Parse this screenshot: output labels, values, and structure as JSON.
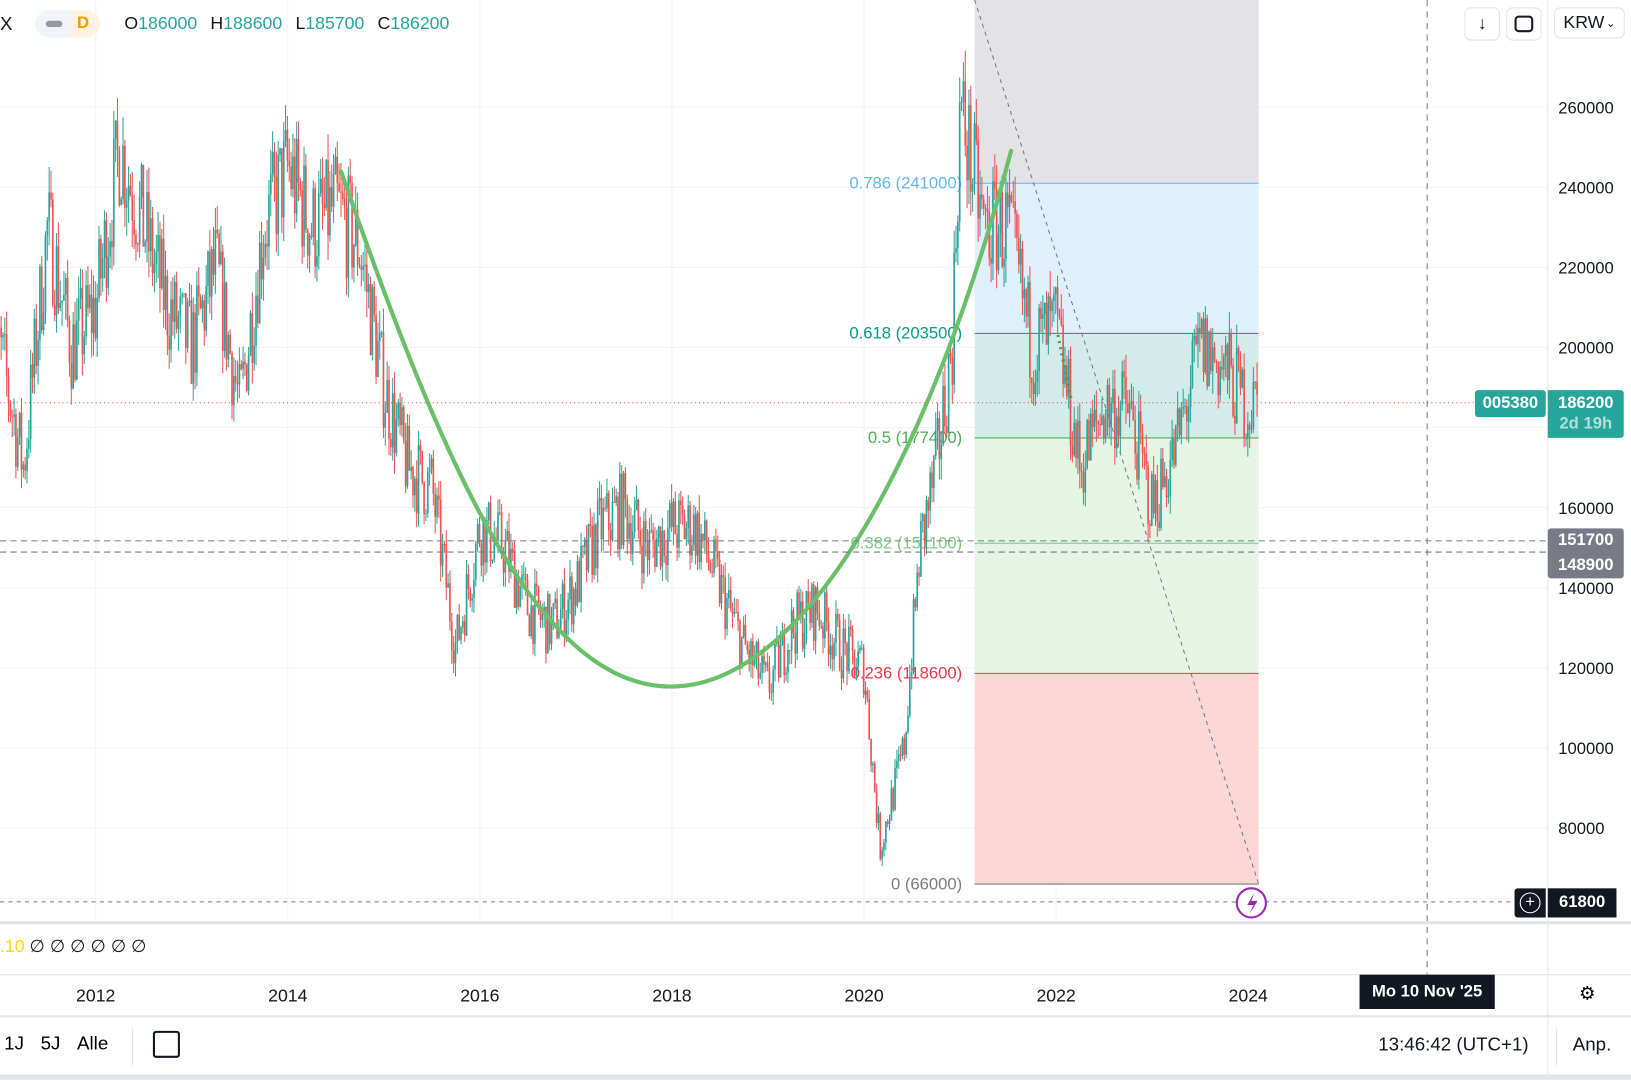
{
  "header": {
    "symbol_fragment": "X",
    "interval": "D",
    "ohlc": {
      "o_label": "O",
      "o": "186000",
      "h_label": "H",
      "h": "188600",
      "l_label": "L",
      "l": "185700",
      "c_label": "C",
      "c": "186200"
    }
  },
  "toolbar": {
    "currency": "KRW",
    "download_icon": "arrow-down-icon",
    "fullscreen_icon": "frame-icon"
  },
  "price_tags": {
    "symbol": "005380",
    "last": "186200",
    "countdown": "2d 19h",
    "line1": "151700",
    "line2": "148900",
    "line3": "61800"
  },
  "indicator": {
    "value": ".10",
    "placeholders": [
      "∅",
      "∅",
      "∅",
      "∅",
      "∅",
      "∅"
    ]
  },
  "crosshair_date": "Mo 10 Nov '25",
  "bottom": {
    "ranges": [
      "1J",
      "5J",
      "Alle"
    ],
    "clock": "13:46:42 (UTC+1)",
    "adjust": "Anp."
  },
  "colors": {
    "up": "#26a69a",
    "down": "#ef5350",
    "cup": "#6abf69"
  },
  "chart_data": {
    "type": "candlestick",
    "yticks": [
      "80000",
      "100000",
      "120000",
      "140000",
      "160000",
      "200000",
      "220000",
      "240000",
      "260000"
    ],
    "xticks": [
      "2012",
      "2014",
      "2016",
      "2018",
      "2020",
      "2022",
      "2024"
    ],
    "ylim": [
      60000,
      290000
    ],
    "xlim": [
      "2011",
      "2025-12"
    ],
    "approx_closes": [
      [
        "2011-01",
        200000
      ],
      [
        "2011-04",
        170000
      ],
      [
        "2011-07",
        230000
      ],
      [
        "2011-10",
        200000
      ],
      [
        "2012-01",
        210000
      ],
      [
        "2012-04",
        250000
      ],
      [
        "2012-07",
        230000
      ],
      [
        "2012-10",
        210000
      ],
      [
        "2013-01",
        200000
      ],
      [
        "2013-04",
        220000
      ],
      [
        "2013-07",
        185000
      ],
      [
        "2013-10",
        230000
      ],
      [
        "2014-01",
        245000
      ],
      [
        "2014-04",
        230000
      ],
      [
        "2014-07",
        235000
      ],
      [
        "2014-10",
        225000
      ],
      [
        "2015-01",
        190000
      ],
      [
        "2015-04",
        170000
      ],
      [
        "2015-07",
        165000
      ],
      [
        "2015-10",
        125000
      ],
      [
        "2016-01",
        155000
      ],
      [
        "2016-04",
        150000
      ],
      [
        "2016-07",
        135000
      ],
      [
        "2016-10",
        130000
      ],
      [
        "2017-01",
        140000
      ],
      [
        "2017-04",
        155000
      ],
      [
        "2017-07",
        160000
      ],
      [
        "2017-10",
        150000
      ],
      [
        "2018-01",
        155000
      ],
      [
        "2018-04",
        155000
      ],
      [
        "2018-07",
        140000
      ],
      [
        "2018-10",
        125000
      ],
      [
        "2019-01",
        115000
      ],
      [
        "2019-04",
        130000
      ],
      [
        "2019-07",
        135000
      ],
      [
        "2019-10",
        125000
      ],
      [
        "2020-01",
        120000
      ],
      [
        "2020-03",
        75000
      ],
      [
        "2020-06",
        100000
      ],
      [
        "2020-08",
        150000
      ],
      [
        "2020-10",
        170000
      ],
      [
        "2020-12",
        200000
      ],
      [
        "2021-01",
        260000
      ],
      [
        "2021-04",
        230000
      ],
      [
        "2021-07",
        230000
      ],
      [
        "2021-10",
        200000
      ],
      [
        "2022-01",
        205000
      ],
      [
        "2022-04",
        170000
      ],
      [
        "2022-07",
        185000
      ],
      [
        "2022-10",
        185000
      ],
      [
        "2023-01",
        160000
      ],
      [
        "2023-04",
        175000
      ],
      [
        "2023-07",
        200000
      ],
      [
        "2023-10",
        195000
      ],
      [
        "2024-01",
        185000
      ],
      [
        "2024-02",
        186200
      ]
    ],
    "fibonacci": {
      "levels": [
        {
          "ratio": "0",
          "price": "66000",
          "label": "0 (66000)",
          "color": "#787b86"
        },
        {
          "ratio": "0.236",
          "price": "118600",
          "label": "0.236 (118600)",
          "color": "#f23645"
        },
        {
          "ratio": "0.382",
          "price": "151100",
          "label": "0.382 (151100)",
          "color": "#81c784"
        },
        {
          "ratio": "0.5",
          "price": "177400",
          "label": "0.5 (177400)",
          "color": "#4caf50"
        },
        {
          "ratio": "0.618",
          "price": "203500",
          "label": "0.618 (203500)",
          "color": "#089981"
        },
        {
          "ratio": "0.786",
          "price": "241000",
          "label": "0.786 (241000)",
          "color": "#64b5f6"
        }
      ],
      "start": "2021-03",
      "end": "2024-02"
    }
  }
}
